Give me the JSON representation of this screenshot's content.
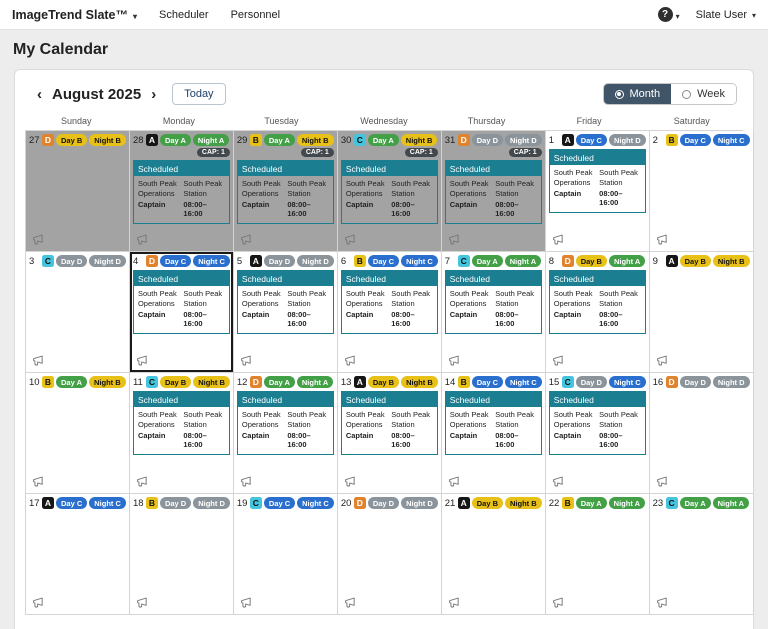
{
  "topnav": {
    "brand": "ImageTrend Slate™",
    "menu": [
      "Scheduler",
      "Personnel"
    ],
    "help_label": "?",
    "user_label": "Slate User"
  },
  "page": {
    "title": "My Calendar"
  },
  "toolbar": {
    "prev_icon": "‹",
    "next_icon": "›",
    "month_label": "August 2025",
    "today_label": "Today",
    "views": [
      "Month",
      "Week"
    ],
    "active_view": "Month"
  },
  "weekdays": [
    "Sunday",
    "Monday",
    "Tuesday",
    "Wednesday",
    "Thursday",
    "Friday",
    "Saturday"
  ],
  "cap_label": "CAP: 1",
  "shift_card": {
    "title": "Scheduled",
    "org": "South Peak Operations",
    "station": "South Peak Station",
    "role": "Captain",
    "time": "08:00–16:00"
  },
  "colors": {
    "teal": "#1b7e91",
    "toggle_active": "#415569",
    "outside_bg": "#a3a3a3",
    "selected_border": "#1a1a1a",
    "platoon": {
      "A": "#161616",
      "B": "#e8c118",
      "C": "#45c5dd",
      "D": "#e0832c"
    },
    "shift": {
      "a": "#43a047",
      "b": "#e8c118",
      "c": "#2a6fce",
      "d": "#8b949b"
    }
  },
  "weeks": [
    [
      {
        "d": 27,
        "l": "D",
        "b": [
          [
            "Day B",
            "b"
          ],
          [
            "Night B",
            "b"
          ]
        ],
        "out": true
      },
      {
        "d": 28,
        "l": "A",
        "b": [
          [
            "Day A",
            "a"
          ],
          [
            "Night A",
            "a"
          ]
        ],
        "out": true,
        "cap": true,
        "sch": true
      },
      {
        "d": 29,
        "l": "B",
        "b": [
          [
            "Day A",
            "a"
          ],
          [
            "Night B",
            "b"
          ]
        ],
        "out": true,
        "cap": true,
        "sch": true
      },
      {
        "d": 30,
        "l": "C",
        "b": [
          [
            "Day A",
            "a"
          ],
          [
            "Night B",
            "b"
          ]
        ],
        "out": true,
        "cap": true,
        "sch": true
      },
      {
        "d": 31,
        "l": "D",
        "b": [
          [
            "Day D",
            "d"
          ],
          [
            "Night D",
            "d"
          ]
        ],
        "out": true,
        "cap": true,
        "sch": true
      },
      {
        "d": 1,
        "l": "A",
        "b": [
          [
            "Day C",
            "c"
          ],
          [
            "Night D",
            "d"
          ]
        ],
        "sch": true
      },
      {
        "d": 2,
        "l": "B",
        "b": [
          [
            "Day C",
            "c"
          ],
          [
            "Night C",
            "c"
          ]
        ]
      }
    ],
    [
      {
        "d": 3,
        "l": "C",
        "b": [
          [
            "Day D",
            "d"
          ],
          [
            "Night D",
            "d"
          ]
        ]
      },
      {
        "d": 4,
        "l": "D",
        "b": [
          [
            "Day C",
            "c"
          ],
          [
            "Night C",
            "c"
          ]
        ],
        "sch": true,
        "sel": true
      },
      {
        "d": 5,
        "l": "A",
        "b": [
          [
            "Day D",
            "d"
          ],
          [
            "Night D",
            "d"
          ]
        ],
        "sch": true
      },
      {
        "d": 6,
        "l": "B",
        "b": [
          [
            "Day C",
            "c"
          ],
          [
            "Night C",
            "c"
          ]
        ],
        "sch": true
      },
      {
        "d": 7,
        "l": "C",
        "b": [
          [
            "Day A",
            "a"
          ],
          [
            "Night A",
            "a"
          ]
        ],
        "sch": true
      },
      {
        "d": 8,
        "l": "D",
        "b": [
          [
            "Day B",
            "b"
          ],
          [
            "Night A",
            "a"
          ]
        ],
        "sch": true
      },
      {
        "d": 9,
        "l": "A",
        "b": [
          [
            "Day B",
            "b"
          ],
          [
            "Night B",
            "b"
          ]
        ]
      }
    ],
    [
      {
        "d": 10,
        "l": "B",
        "b": [
          [
            "Day A",
            "a"
          ],
          [
            "Night B",
            "b"
          ]
        ]
      },
      {
        "d": 11,
        "l": "C",
        "b": [
          [
            "Day B",
            "b"
          ],
          [
            "Night B",
            "b"
          ]
        ],
        "sch": true
      },
      {
        "d": 12,
        "l": "D",
        "b": [
          [
            "Day A",
            "a"
          ],
          [
            "Night A",
            "a"
          ]
        ],
        "sch": true
      },
      {
        "d": 13,
        "l": "A",
        "b": [
          [
            "Day B",
            "b"
          ],
          [
            "Night B",
            "b"
          ]
        ],
        "sch": true
      },
      {
        "d": 14,
        "l": "B",
        "b": [
          [
            "Day C",
            "c"
          ],
          [
            "Night C",
            "c"
          ]
        ],
        "sch": true
      },
      {
        "d": 15,
        "l": "C",
        "b": [
          [
            "Day D",
            "d"
          ],
          [
            "Night C",
            "c"
          ]
        ],
        "sch": true
      },
      {
        "d": 16,
        "l": "D",
        "b": [
          [
            "Day D",
            "d"
          ],
          [
            "Night D",
            "d"
          ]
        ]
      }
    ],
    [
      {
        "d": 17,
        "l": "A",
        "b": [
          [
            "Day C",
            "c"
          ],
          [
            "Night C",
            "c"
          ]
        ]
      },
      {
        "d": 18,
        "l": "B",
        "b": [
          [
            "Day D",
            "d"
          ],
          [
            "Night D",
            "d"
          ]
        ]
      },
      {
        "d": 19,
        "l": "C",
        "b": [
          [
            "Day C",
            "c"
          ],
          [
            "Night C",
            "c"
          ]
        ]
      },
      {
        "d": 20,
        "l": "D",
        "b": [
          [
            "Day D",
            "d"
          ],
          [
            "Night D",
            "d"
          ]
        ]
      },
      {
        "d": 21,
        "l": "A",
        "b": [
          [
            "Day B",
            "b"
          ],
          [
            "Night B",
            "b"
          ]
        ]
      },
      {
        "d": 22,
        "l": "B",
        "b": [
          [
            "Day A",
            "a"
          ],
          [
            "Night A",
            "a"
          ]
        ]
      },
      {
        "d": 23,
        "l": "C",
        "b": [
          [
            "Day A",
            "a"
          ],
          [
            "Night A",
            "a"
          ]
        ]
      }
    ]
  ]
}
